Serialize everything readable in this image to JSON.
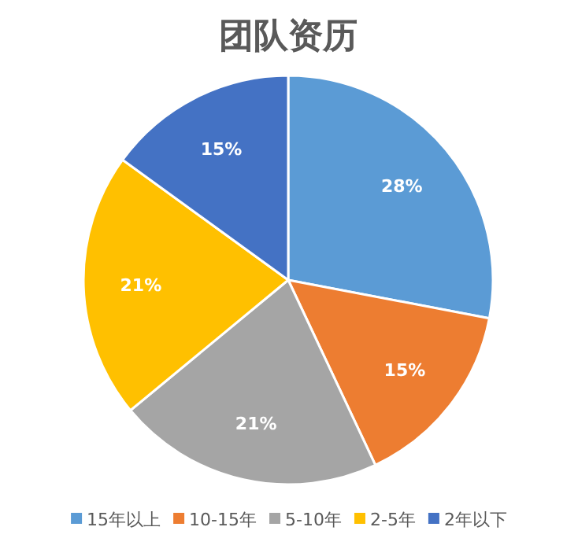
{
  "chart_data": {
    "type": "pie",
    "title": "团队资历",
    "categories": [
      "15年以上",
      "10-15年",
      "5-10年",
      "2-5年",
      "2年以下"
    ],
    "values": [
      28,
      15,
      21,
      21,
      15
    ],
    "colors": [
      "#5b9bd5",
      "#ed7d31",
      "#a5a5a5",
      "#ffc000",
      "#4472c4"
    ],
    "value_labels": [
      "28%",
      "15%",
      "21%",
      "21%",
      "15%"
    ],
    "legend": "bottom"
  }
}
